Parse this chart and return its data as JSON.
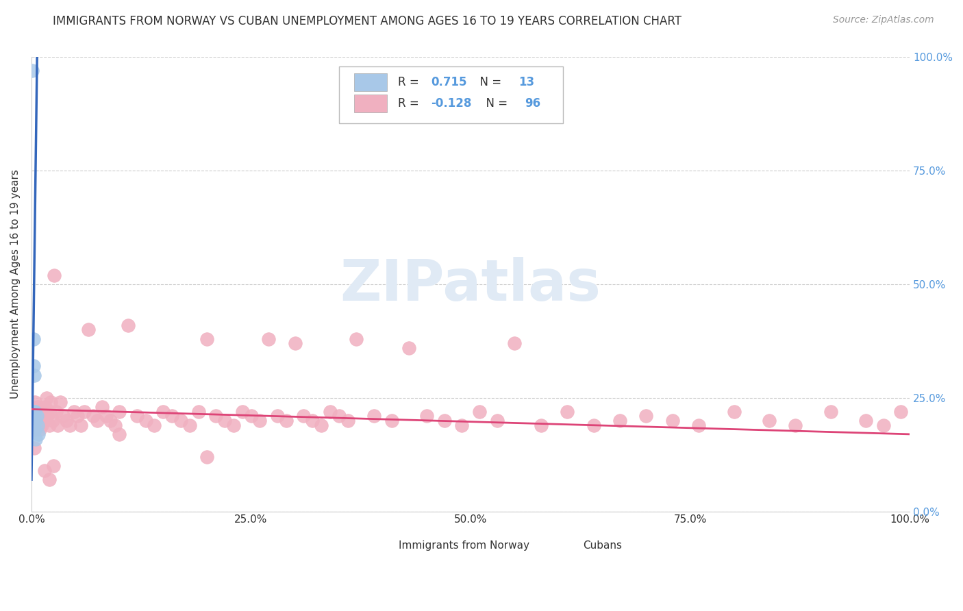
{
  "title": "IMMIGRANTS FROM NORWAY VS CUBAN UNEMPLOYMENT AMONG AGES 16 TO 19 YEARS CORRELATION CHART",
  "source": "Source: ZipAtlas.com",
  "ylabel": "Unemployment Among Ages 16 to 19 years",
  "xlim": [
    0,
    1.0
  ],
  "ylim": [
    0,
    1.0
  ],
  "xtick_positions": [
    0.0,
    0.25,
    0.5,
    0.75,
    1.0
  ],
  "xtick_labels": [
    "0.0%",
    "25.0%",
    "50.0%",
    "75.0%",
    "100.0%"
  ],
  "ytick_positions": [
    0.0,
    0.25,
    0.5,
    0.75,
    1.0
  ],
  "ytick_labels_right": [
    "0.0%",
    "25.0%",
    "50.0%",
    "75.0%",
    "100.0%"
  ],
  "blue_R": 0.715,
  "blue_N": 13,
  "pink_R": -0.128,
  "pink_N": 96,
  "blue_color": "#a8c8e8",
  "blue_line_color": "#3366bb",
  "pink_color": "#f0b0c0",
  "pink_line_color": "#dd4477",
  "legend_blue_label": "Immigrants from Norway",
  "legend_pink_label": "Cubans",
  "blue_points_x": [
    0.001,
    0.002,
    0.002,
    0.003,
    0.003,
    0.003,
    0.004,
    0.004,
    0.005,
    0.005,
    0.006,
    0.007,
    0.008
  ],
  "blue_points_y": [
    0.97,
    0.38,
    0.32,
    0.3,
    0.22,
    0.18,
    0.22,
    0.18,
    0.2,
    0.16,
    0.21,
    0.19,
    0.17
  ],
  "blue_trend_x0": 0.0,
  "blue_trend_y0": 0.07,
  "blue_trend_x1": 0.0065,
  "blue_trend_y1": 1.02,
  "pink_trend_x0": 0.0,
  "pink_trend_y0": 0.225,
  "pink_trend_x1": 1.0,
  "pink_trend_y1": 0.17,
  "pink_points_x": [
    0.002,
    0.004,
    0.005,
    0.006,
    0.007,
    0.008,
    0.009,
    0.01,
    0.011,
    0.012,
    0.013,
    0.014,
    0.015,
    0.016,
    0.017,
    0.018,
    0.02,
    0.021,
    0.022,
    0.024,
    0.026,
    0.028,
    0.03,
    0.033,
    0.036,
    0.04,
    0.044,
    0.048,
    0.052,
    0.056,
    0.06,
    0.065,
    0.07,
    0.075,
    0.08,
    0.085,
    0.09,
    0.095,
    0.1,
    0.11,
    0.12,
    0.13,
    0.14,
    0.15,
    0.16,
    0.17,
    0.18,
    0.19,
    0.2,
    0.21,
    0.22,
    0.23,
    0.24,
    0.25,
    0.26,
    0.27,
    0.28,
    0.29,
    0.3,
    0.31,
    0.32,
    0.33,
    0.34,
    0.35,
    0.36,
    0.37,
    0.39,
    0.41,
    0.43,
    0.45,
    0.47,
    0.49,
    0.51,
    0.53,
    0.55,
    0.58,
    0.61,
    0.64,
    0.67,
    0.7,
    0.73,
    0.76,
    0.8,
    0.84,
    0.87,
    0.91,
    0.95,
    0.97,
    0.99,
    0.003,
    0.003,
    0.015,
    0.02,
    0.025,
    0.1,
    0.2
  ],
  "pink_points_y": [
    0.21,
    0.24,
    0.2,
    0.19,
    0.23,
    0.21,
    0.18,
    0.22,
    0.2,
    0.19,
    0.21,
    0.22,
    0.2,
    0.23,
    0.25,
    0.21,
    0.19,
    0.22,
    0.24,
    0.2,
    0.52,
    0.22,
    0.19,
    0.24,
    0.21,
    0.2,
    0.19,
    0.22,
    0.21,
    0.19,
    0.22,
    0.4,
    0.21,
    0.2,
    0.23,
    0.21,
    0.2,
    0.19,
    0.22,
    0.41,
    0.21,
    0.2,
    0.19,
    0.22,
    0.21,
    0.2,
    0.19,
    0.22,
    0.38,
    0.21,
    0.2,
    0.19,
    0.22,
    0.21,
    0.2,
    0.38,
    0.21,
    0.2,
    0.37,
    0.21,
    0.2,
    0.19,
    0.22,
    0.21,
    0.2,
    0.38,
    0.21,
    0.2,
    0.36,
    0.21,
    0.2,
    0.19,
    0.22,
    0.2,
    0.37,
    0.19,
    0.22,
    0.19,
    0.2,
    0.21,
    0.2,
    0.19,
    0.22,
    0.2,
    0.19,
    0.22,
    0.2,
    0.19,
    0.22,
    0.18,
    0.14,
    0.09,
    0.07,
    0.1,
    0.17,
    0.12
  ],
  "background_color": "#ffffff",
  "grid_color": "#cccccc",
  "watermark_text": "ZIPatlas",
  "watermark_color": "#e0eaf5",
  "title_fontsize": 12,
  "source_fontsize": 10,
  "label_fontsize": 11,
  "tick_fontsize": 11,
  "right_tick_color": "#5599dd",
  "text_color": "#333333"
}
